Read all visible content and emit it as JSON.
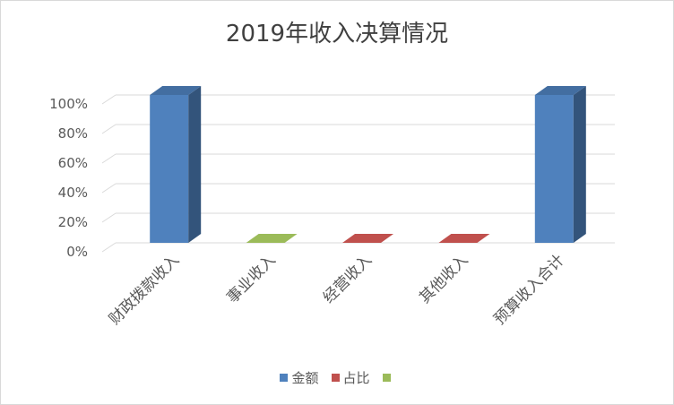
{
  "chart_data": {
    "type": "bar",
    "title": "2019年收入决算情况",
    "categories": [
      "财政拨款收入",
      "事业收入",
      "经营收入",
      "其他收入",
      "预算收入合计"
    ],
    "series": [
      {
        "name": "金额",
        "color": "#4f81bd",
        "values": [
          1.0,
          0,
          0,
          0,
          1.0
        ]
      },
      {
        "name": "占比",
        "color": "#c0504d",
        "values": [
          0,
          0,
          0,
          0,
          0
        ]
      },
      {
        "name": "",
        "color": "#9bbb59",
        "values": [
          0,
          0,
          0,
          0,
          0
        ]
      }
    ],
    "y_ticks": [
      "0%",
      "20%",
      "40%",
      "60%",
      "80%",
      "100%"
    ],
    "ylim": [
      0,
      1.0
    ],
    "grid": true,
    "legend_position": "bottom"
  }
}
